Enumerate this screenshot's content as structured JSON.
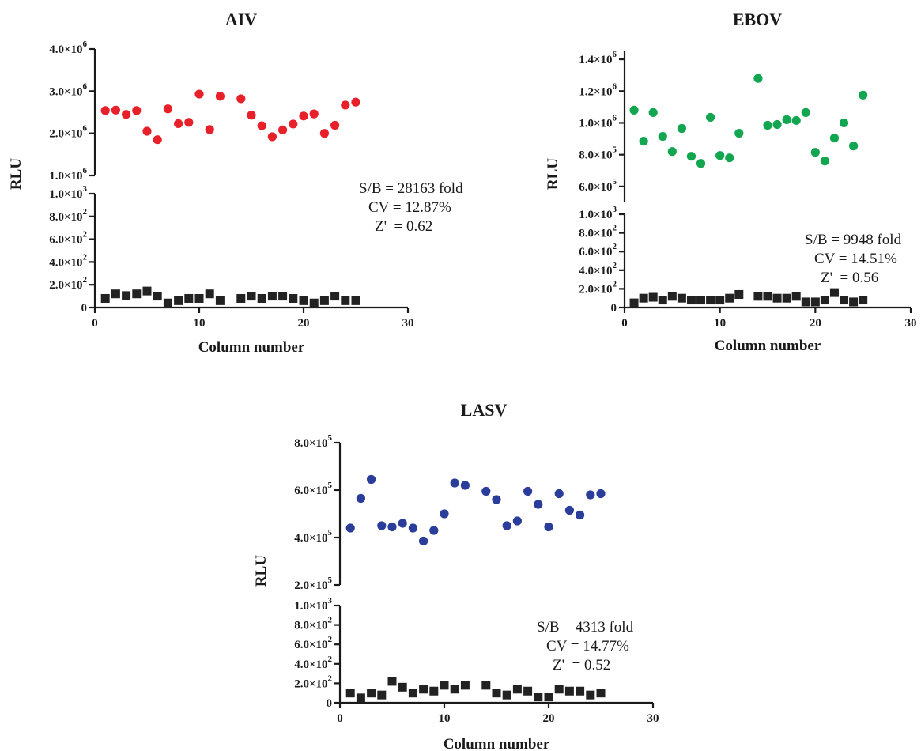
{
  "chart_data": [
    {
      "type": "scatter",
      "title": "AIV",
      "xlabel": "Column number",
      "ylabel": "RLU",
      "xlim": [
        0,
        30
      ],
      "x_ticks": [
        "0",
        "10",
        "20",
        "30"
      ],
      "y_axis_broken": true,
      "upper_ylim": [
        1000000,
        4000000
      ],
      "upper_y_ticks": [
        {
          "value": 1000000,
          "mant": "1.0",
          "exp": "6"
        },
        {
          "value": 2000000,
          "mant": "2.0",
          "exp": "6"
        },
        {
          "value": 3000000,
          "mant": "3.0",
          "exp": "6"
        },
        {
          "value": 4000000,
          "mant": "4.0",
          "exp": "6"
        }
      ],
      "lower_ylim": [
        0,
        1000
      ],
      "lower_y_ticks": [
        {
          "value": 0,
          "mant": "0",
          "exp": ""
        },
        {
          "value": 200,
          "mant": "2.0",
          "exp": "2"
        },
        {
          "value": 400,
          "mant": "4.0",
          "exp": "2"
        },
        {
          "value": 600,
          "mant": "6.0",
          "exp": "2"
        },
        {
          "value": 800,
          "mant": "8.0",
          "exp": "2"
        },
        {
          "value": 1000,
          "mant": "1.0",
          "exp": "3"
        }
      ],
      "series": [
        {
          "marker": "circle",
          "color": "#e8202a",
          "x": [
            1,
            2,
            3,
            4,
            5,
            6,
            7,
            8,
            9,
            10,
            11,
            12,
            14,
            15,
            16,
            17,
            18,
            19,
            20,
            21,
            22,
            23,
            24,
            25
          ],
          "y": [
            2540000,
            2550000,
            2450000,
            2540000,
            2050000,
            1850000,
            2580000,
            2230000,
            2260000,
            2930000,
            2090000,
            2880000,
            2820000,
            2430000,
            2180000,
            1920000,
            2080000,
            2220000,
            2410000,
            2460000,
            2000000,
            2190000,
            2670000,
            2740000
          ]
        },
        {
          "marker": "square",
          "color": "#222222",
          "x": [
            1,
            2,
            3,
            4,
            5,
            6,
            7,
            8,
            9,
            10,
            11,
            12,
            14,
            15,
            16,
            17,
            18,
            19,
            20,
            21,
            22,
            23,
            24,
            25
          ],
          "y": [
            80,
            120,
            105,
            120,
            145,
            100,
            40,
            60,
            80,
            80,
            120,
            60,
            80,
            100,
            80,
            100,
            100,
            80,
            60,
            40,
            60,
            100,
            60,
            60
          ]
        }
      ],
      "annotations": [
        "S/B = 28163 fold",
        "CV = 12.87%",
        "Z'  = 0.62"
      ]
    },
    {
      "type": "scatter",
      "title": "EBOV",
      "xlabel": "Column number",
      "ylabel": "RLU",
      "xlim": [
        0,
        30
      ],
      "x_ticks": [
        "0",
        "10",
        "20",
        "30"
      ],
      "y_axis_broken": true,
      "upper_ylim": [
        500000,
        1450000
      ],
      "upper_y_ticks": [
        {
          "value": 600000,
          "mant": "6.0",
          "exp": "5"
        },
        {
          "value": 800000,
          "mant": "8.0",
          "exp": "5"
        },
        {
          "value": 1000000,
          "mant": "1.0",
          "exp": "6"
        },
        {
          "value": 1200000,
          "mant": "1.2",
          "exp": "6"
        },
        {
          "value": 1400000,
          "mant": "1.4",
          "exp": "6"
        }
      ],
      "lower_ylim": [
        0,
        1000
      ],
      "lower_y_ticks": [
        {
          "value": 0,
          "mant": "0",
          "exp": ""
        },
        {
          "value": 200,
          "mant": "2.0",
          "exp": "2"
        },
        {
          "value": 400,
          "mant": "4.0",
          "exp": "2"
        },
        {
          "value": 600,
          "mant": "6.0",
          "exp": "2"
        },
        {
          "value": 800,
          "mant": "8.0",
          "exp": "2"
        },
        {
          "value": 1000,
          "mant": "1.0",
          "exp": "3"
        }
      ],
      "series": [
        {
          "marker": "circle",
          "color": "#12a650",
          "x": [
            1,
            2,
            3,
            4,
            5,
            6,
            7,
            8,
            9,
            10,
            11,
            12,
            14,
            15,
            16,
            17,
            18,
            19,
            20,
            21,
            22,
            23,
            24,
            25
          ],
          "y": [
            1080000,
            885000,
            1065000,
            915000,
            820000,
            965000,
            790000,
            745000,
            1035000,
            795000,
            780000,
            935000,
            1280000,
            985000,
            990000,
            1020000,
            1015000,
            1065000,
            815000,
            760000,
            905000,
            1000000,
            855000,
            1175000
          ]
        },
        {
          "marker": "square",
          "color": "#222222",
          "x": [
            1,
            2,
            3,
            4,
            5,
            6,
            7,
            8,
            9,
            10,
            11,
            12,
            14,
            15,
            16,
            17,
            18,
            19,
            20,
            21,
            22,
            23,
            24,
            25
          ],
          "y": [
            50,
            100,
            110,
            80,
            120,
            100,
            80,
            80,
            80,
            80,
            100,
            140,
            120,
            120,
            100,
            100,
            120,
            60,
            60,
            80,
            160,
            80,
            60,
            80
          ]
        }
      ],
      "annotations": [
        "S/B = 9948 fold",
        "CV = 14.51%",
        "Z'  = 0.56"
      ]
    },
    {
      "type": "scatter",
      "title": "LASV",
      "xlabel": "Column number",
      "ylabel": "RLU",
      "xlim": [
        0,
        30
      ],
      "x_ticks": [
        "0",
        "10",
        "20",
        "30"
      ],
      "y_axis_broken": true,
      "upper_ylim": [
        200000,
        800000
      ],
      "upper_y_ticks": [
        {
          "value": 200000,
          "mant": "2.0",
          "exp": "5"
        },
        {
          "value": 400000,
          "mant": "4.0",
          "exp": "5"
        },
        {
          "value": 600000,
          "mant": "6.0",
          "exp": "5"
        },
        {
          "value": 800000,
          "mant": "8.0",
          "exp": "5"
        }
      ],
      "lower_ylim": [
        0,
        1000
      ],
      "lower_y_ticks": [
        {
          "value": 0,
          "mant": "0",
          "exp": ""
        },
        {
          "value": 200,
          "mant": "2.0",
          "exp": "2"
        },
        {
          "value": 400,
          "mant": "4.0",
          "exp": "2"
        },
        {
          "value": 600,
          "mant": "6.0",
          "exp": "2"
        },
        {
          "value": 800,
          "mant": "8.0",
          "exp": "2"
        },
        {
          "value": 1000,
          "mant": "1.0",
          "exp": "3"
        }
      ],
      "series": [
        {
          "marker": "circle",
          "color": "#2b3d9a",
          "x": [
            1,
            2,
            3,
            4,
            5,
            6,
            7,
            8,
            9,
            10,
            11,
            12,
            14,
            15,
            16,
            17,
            18,
            19,
            20,
            21,
            22,
            23,
            24,
            25
          ],
          "y": [
            440000,
            565000,
            645000,
            450000,
            445000,
            460000,
            440000,
            385000,
            430000,
            500000,
            630000,
            620000,
            595000,
            560000,
            450000,
            470000,
            595000,
            540000,
            445000,
            585000,
            515000,
            495000,
            580000,
            585000
          ]
        },
        {
          "marker": "square",
          "color": "#222222",
          "x": [
            1,
            2,
            3,
            4,
            5,
            6,
            7,
            8,
            9,
            10,
            11,
            12,
            14,
            15,
            16,
            17,
            18,
            19,
            20,
            21,
            22,
            23,
            24,
            25
          ],
          "y": [
            100,
            50,
            100,
            80,
            220,
            160,
            100,
            140,
            120,
            180,
            140,
            180,
            180,
            100,
            80,
            140,
            120,
            60,
            60,
            140,
            120,
            120,
            80,
            100
          ]
        }
      ],
      "annotations": [
        "S/B = 4313 fold",
        "CV = 14.77%",
        "Z'  = 0.52"
      ]
    }
  ]
}
